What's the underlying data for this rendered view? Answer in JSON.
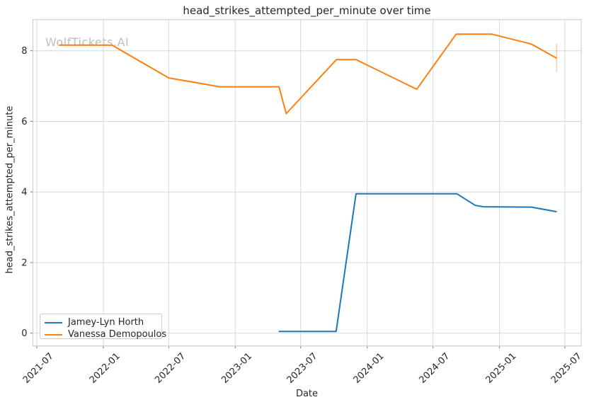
{
  "watermark": "WolfTickets.AI",
  "chart_data": {
    "type": "line",
    "title": "head_strikes_attempted_per_minute over time",
    "xlabel": "Date",
    "ylabel": "head_strikes_attempted_per_minute",
    "x_ticks": [
      "2021-07",
      "2022-01",
      "2022-07",
      "2023-01",
      "2023-07",
      "2024-01",
      "2024-07",
      "2025-01",
      "2025-07"
    ],
    "y_ticks": [
      0,
      2,
      4,
      6,
      8
    ],
    "xlim": [
      "2021-06-20",
      "2025-08-14"
    ],
    "ylim": [
      -0.37,
      8.89
    ],
    "grid": true,
    "legend_position": "lower-left",
    "series": [
      {
        "name": "Jamey-Lyn Horth",
        "color": "#1f77b4",
        "points": [
          [
            "2023-05-01",
            0.05
          ],
          [
            "2023-10-07",
            0.05
          ],
          [
            "2023-12-01",
            3.95
          ],
          [
            "2024-09-05",
            3.95
          ],
          [
            "2024-10-26",
            3.62
          ],
          [
            "2024-11-18",
            3.58
          ],
          [
            "2025-03-30",
            3.57
          ],
          [
            "2025-06-08",
            3.44
          ]
        ]
      },
      {
        "name": "Vanessa Demopoulos",
        "color": "#ff7f0e",
        "points": [
          [
            "2021-09-01",
            8.16
          ],
          [
            "2022-01-25",
            8.16
          ],
          [
            "2022-07-01",
            7.23
          ],
          [
            "2022-11-19",
            6.98
          ],
          [
            "2023-05-02",
            6.98
          ],
          [
            "2023-05-22",
            6.22
          ],
          [
            "2023-10-08",
            7.75
          ],
          [
            "2023-12-01",
            7.75
          ],
          [
            "2024-05-17",
            6.91
          ],
          [
            "2024-09-03",
            8.47
          ],
          [
            "2024-12-11",
            8.47
          ],
          [
            "2025-03-30",
            8.19
          ],
          [
            "2025-06-08",
            7.79
          ]
        ],
        "error_bar": {
          "date": "2025-06-08",
          "low": 7.4,
          "high": 8.2
        }
      }
    ]
  }
}
